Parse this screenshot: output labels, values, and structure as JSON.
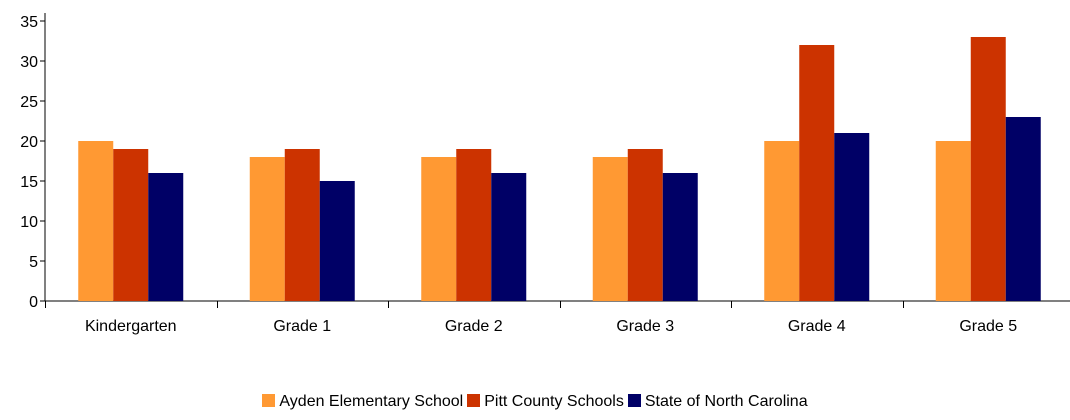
{
  "chart_data": {
    "type": "bar",
    "title": "",
    "xlabel": "",
    "ylabel": "",
    "categories": [
      "Kindergarten",
      "Grade 1",
      "Grade 2",
      "Grade 3",
      "Grade 4",
      "Grade 5"
    ],
    "series": [
      {
        "name": "Ayden Elementary School",
        "color": "#ff9933",
        "values": [
          20,
          18,
          18,
          18,
          20,
          20
        ]
      },
      {
        "name": "Pitt County Schools",
        "color": "#cc3300",
        "values": [
          19,
          19,
          19,
          19,
          32,
          33
        ]
      },
      {
        "name": "State of North Carolina",
        "color": "#000066",
        "values": [
          16,
          15,
          16,
          16,
          21,
          23
        ]
      }
    ],
    "ylim": [
      0,
      35
    ],
    "yticks": [
      0,
      5,
      10,
      15,
      20,
      25,
      30,
      35
    ],
    "grid": false,
    "legend_position": "bottom"
  }
}
